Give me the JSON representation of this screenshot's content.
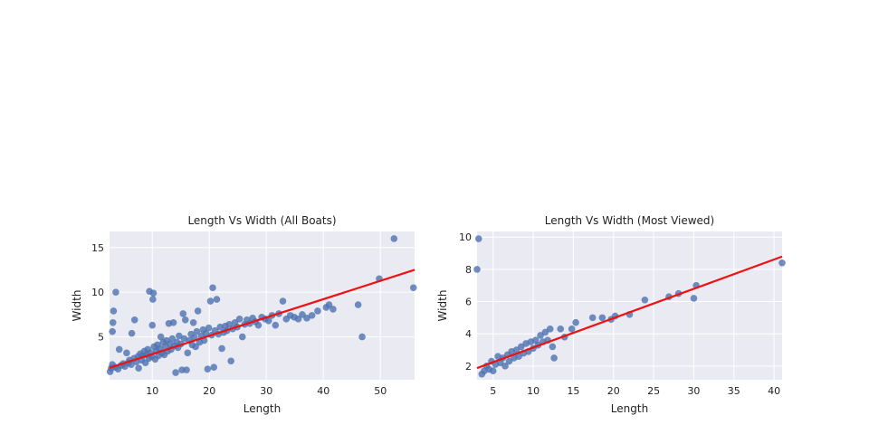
{
  "chart_data": [
    {
      "type": "scatter",
      "title": "Length Vs Width (All Boats)",
      "xlabel": "Length",
      "ylabel": "Width",
      "xlim": [
        2.5,
        56
      ],
      "ylim": [
        0.2,
        16.8
      ],
      "xticks": [
        10,
        20,
        30,
        40,
        50
      ],
      "yticks": [
        5,
        10,
        15
      ],
      "grid": true,
      "point_color": "#4c72b0",
      "regression": {
        "color": "#ee1111",
        "intercept": 1.02,
        "slope": 0.205
      },
      "points": [
        [
          2.6,
          1.1
        ],
        [
          2.8,
          1.5
        ],
        [
          3.0,
          1.9
        ],
        [
          3.1,
          6.6
        ],
        [
          3.2,
          7.9
        ],
        [
          3.0,
          5.6
        ],
        [
          3.6,
          10.0
        ],
        [
          3.5,
          1.6
        ],
        [
          4.0,
          1.4
        ],
        [
          4.2,
          3.6
        ],
        [
          4.5,
          1.8
        ],
        [
          4.9,
          2.0
        ],
        [
          5.2,
          1.7
        ],
        [
          5.5,
          3.2
        ],
        [
          5.8,
          2.1
        ],
        [
          6.0,
          2.4
        ],
        [
          6.3,
          1.9
        ],
        [
          6.4,
          5.4
        ],
        [
          6.8,
          2.6
        ],
        [
          6.9,
          6.9
        ],
        [
          7.2,
          2.2
        ],
        [
          7.5,
          2.8
        ],
        [
          7.6,
          1.5
        ],
        [
          7.9,
          3.1
        ],
        [
          8.1,
          2.4
        ],
        [
          8.3,
          2.9
        ],
        [
          8.6,
          3.4
        ],
        [
          8.8,
          2.1
        ],
        [
          9.0,
          3.0
        ],
        [
          9.2,
          3.6
        ],
        [
          9.4,
          2.6
        ],
        [
          9.5,
          10.1
        ],
        [
          9.7,
          3.2
        ],
        [
          9.9,
          2.8
        ],
        [
          10.0,
          6.3
        ],
        [
          10.1,
          9.2
        ],
        [
          10.2,
          9.9
        ],
        [
          10.3,
          3.9
        ],
        [
          10.5,
          2.5
        ],
        [
          10.7,
          3.4
        ],
        [
          10.9,
          4.1
        ],
        [
          11.1,
          2.9
        ],
        [
          11.3,
          3.7
        ],
        [
          11.5,
          5.0
        ],
        [
          11.7,
          3.2
        ],
        [
          11.9,
          4.4
        ],
        [
          12.1,
          3.0
        ],
        [
          12.3,
          3.9
        ],
        [
          12.5,
          4.6
        ],
        [
          12.7,
          3.4
        ],
        [
          12.9,
          6.5
        ],
        [
          13.1,
          4.2
        ],
        [
          13.3,
          3.6
        ],
        [
          13.5,
          4.8
        ],
        [
          13.7,
          6.6
        ],
        [
          13.9,
          4.0
        ],
        [
          14.1,
          1.0
        ],
        [
          14.3,
          4.4
        ],
        [
          14.5,
          3.8
        ],
        [
          14.7,
          5.1
        ],
        [
          15.0,
          4.2
        ],
        [
          15.2,
          1.3
        ],
        [
          15.4,
          7.6
        ],
        [
          15.6,
          4.8
        ],
        [
          15.8,
          6.9
        ],
        [
          16.0,
          1.3
        ],
        [
          16.2,
          3.2
        ],
        [
          16.5,
          4.6
        ],
        [
          16.8,
          5.3
        ],
        [
          17.0,
          4.1
        ],
        [
          17.2,
          6.6
        ],
        [
          17.4,
          4.9
        ],
        [
          17.6,
          3.9
        ],
        [
          17.8,
          5.6
        ],
        [
          18.0,
          7.9
        ],
        [
          18.3,
          4.4
        ],
        [
          18.6,
          5.1
        ],
        [
          18.9,
          5.8
        ],
        [
          19.1,
          4.6
        ],
        [
          19.4,
          5.4
        ],
        [
          19.7,
          1.4
        ],
        [
          19.9,
          6.0
        ],
        [
          20.2,
          9.0
        ],
        [
          20.4,
          5.2
        ],
        [
          20.6,
          10.5
        ],
        [
          20.8,
          1.6
        ],
        [
          21.0,
          5.7
        ],
        [
          21.3,
          9.2
        ],
        [
          21.6,
          5.3
        ],
        [
          21.9,
          6.1
        ],
        [
          22.2,
          3.7
        ],
        [
          22.5,
          5.5
        ],
        [
          22.8,
          6.2
        ],
        [
          23.1,
          5.7
        ],
        [
          23.5,
          6.4
        ],
        [
          23.8,
          2.3
        ],
        [
          24.1,
          5.9
        ],
        [
          24.5,
          6.6
        ],
        [
          24.9,
          6.1
        ],
        [
          25.3,
          7.0
        ],
        [
          25.8,
          5.0
        ],
        [
          26.2,
          6.4
        ],
        [
          26.6,
          6.9
        ],
        [
          27.1,
          6.5
        ],
        [
          27.6,
          7.1
        ],
        [
          28.1,
          6.7
        ],
        [
          28.6,
          6.3
        ],
        [
          29.2,
          7.2
        ],
        [
          29.8,
          7.0
        ],
        [
          30.4,
          6.8
        ],
        [
          31.0,
          7.4
        ],
        [
          31.6,
          6.3
        ],
        [
          32.2,
          7.6
        ],
        [
          32.9,
          9.0
        ],
        [
          33.5,
          7.0
        ],
        [
          34.2,
          7.4
        ],
        [
          34.9,
          7.2
        ],
        [
          35.6,
          7.0
        ],
        [
          36.3,
          7.5
        ],
        [
          37.1,
          7.1
        ],
        [
          38.0,
          7.4
        ],
        [
          39.0,
          7.9
        ],
        [
          40.5,
          8.3
        ],
        [
          41.0,
          8.6
        ],
        [
          41.7,
          8.1
        ],
        [
          46.1,
          8.6
        ],
        [
          46.8,
          5.0
        ],
        [
          49.8,
          11.5
        ],
        [
          52.4,
          16.0
        ],
        [
          55.8,
          10.5
        ]
      ]
    },
    {
      "type": "scatter",
      "title": "Length Vs Width (Most Viewed)",
      "xlabel": "Length",
      "ylabel": "Width",
      "xlim": [
        3,
        41
      ],
      "ylim": [
        1.15,
        10.35
      ],
      "xticks": [
        5,
        10,
        15,
        20,
        25,
        30,
        35,
        40
      ],
      "yticks": [
        2,
        4,
        6,
        8,
        10
      ],
      "grid": true,
      "point_color": "#4c72b0",
      "regression": {
        "color": "#ee1111",
        "intercept": 1.33,
        "slope": 0.182
      },
      "points": [
        [
          3.0,
          8.0
        ],
        [
          3.2,
          9.9
        ],
        [
          3.6,
          1.5
        ],
        [
          3.9,
          1.7
        ],
        [
          4.2,
          2.0
        ],
        [
          4.5,
          1.8
        ],
        [
          4.8,
          2.3
        ],
        [
          5.0,
          1.7
        ],
        [
          5.3,
          2.1
        ],
        [
          5.6,
          2.6
        ],
        [
          5.9,
          2.2
        ],
        [
          6.2,
          2.5
        ],
        [
          6.5,
          2.0
        ],
        [
          6.8,
          2.7
        ],
        [
          7.0,
          2.3
        ],
        [
          7.3,
          2.9
        ],
        [
          7.6,
          2.5
        ],
        [
          7.9,
          3.0
        ],
        [
          8.2,
          2.6
        ],
        [
          8.5,
          3.2
        ],
        [
          8.8,
          2.8
        ],
        [
          9.1,
          3.4
        ],
        [
          9.4,
          2.9
        ],
        [
          9.7,
          3.5
        ],
        [
          10.0,
          3.1
        ],
        [
          10.3,
          3.6
        ],
        [
          10.6,
          3.3
        ],
        [
          10.9,
          3.9
        ],
        [
          11.2,
          3.5
        ],
        [
          11.5,
          4.1
        ],
        [
          11.8,
          3.6
        ],
        [
          12.1,
          4.3
        ],
        [
          12.4,
          3.2
        ],
        [
          12.6,
          2.5
        ],
        [
          13.4,
          4.3
        ],
        [
          13.9,
          3.8
        ],
        [
          14.8,
          4.3
        ],
        [
          15.3,
          4.7
        ],
        [
          17.4,
          5.0
        ],
        [
          18.6,
          5.0
        ],
        [
          19.7,
          4.9
        ],
        [
          20.2,
          5.1
        ],
        [
          22.0,
          5.2
        ],
        [
          23.9,
          6.1
        ],
        [
          26.9,
          6.3
        ],
        [
          28.1,
          6.5
        ],
        [
          30.0,
          6.2
        ],
        [
          30.3,
          7.0
        ],
        [
          41.0,
          8.4
        ]
      ]
    }
  ]
}
